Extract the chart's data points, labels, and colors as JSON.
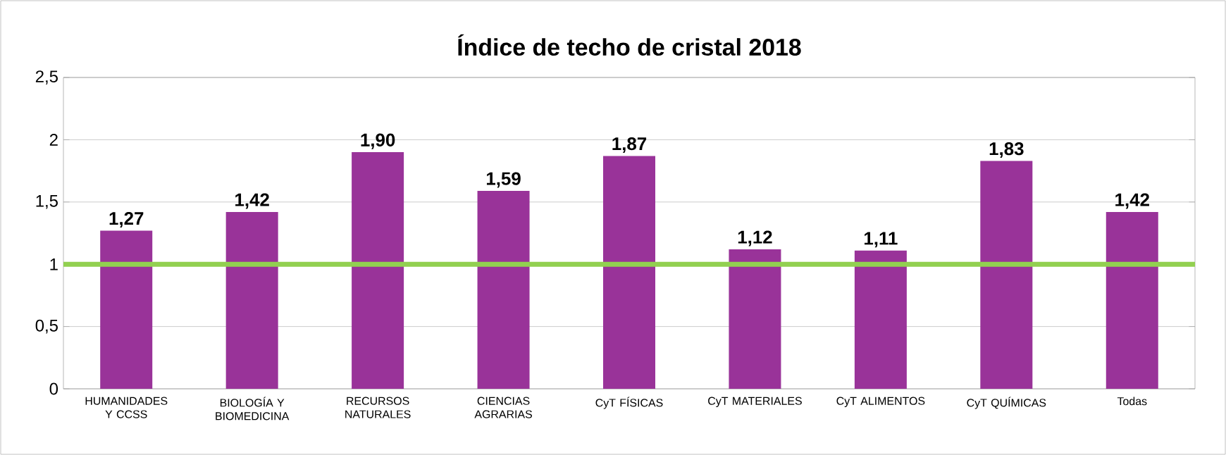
{
  "chart_data": {
    "type": "bar",
    "title": "Índice de techo de cristal 2018",
    "categories": [
      "HUMANIDADES Y CCSS",
      "BIOLOGÍA Y BIOMEDICINA",
      "RECURSOS NATURALES",
      "CIENCIAS AGRARIAS",
      "CyT FÍSICAS",
      "CyT MATERIALES",
      "CyT ALIMENTOS",
      "CyT QUÍMICAS",
      "Todas"
    ],
    "values": [
      1.27,
      1.42,
      1.9,
      1.59,
      1.87,
      1.12,
      1.11,
      1.83,
      1.42
    ],
    "value_labels": [
      "1,27",
      "1,42",
      "1,90",
      "1,59",
      "1,87",
      "1,12",
      "1,11",
      "1,83",
      "1,42"
    ],
    "color": "#993399",
    "ylim": [
      0,
      2.5
    ],
    "yticks": [
      0,
      {
        "value": 0.5,
        "label": "0,5"
      },
      1,
      {
        "value": 1.5,
        "label": "1,5"
      },
      2,
      {
        "value": 2.5,
        "label": "2,5"
      }
    ],
    "grid": "y",
    "ref_lines": [
      {
        "axis": "y",
        "value": 1,
        "color": "#92d050"
      }
    ]
  }
}
